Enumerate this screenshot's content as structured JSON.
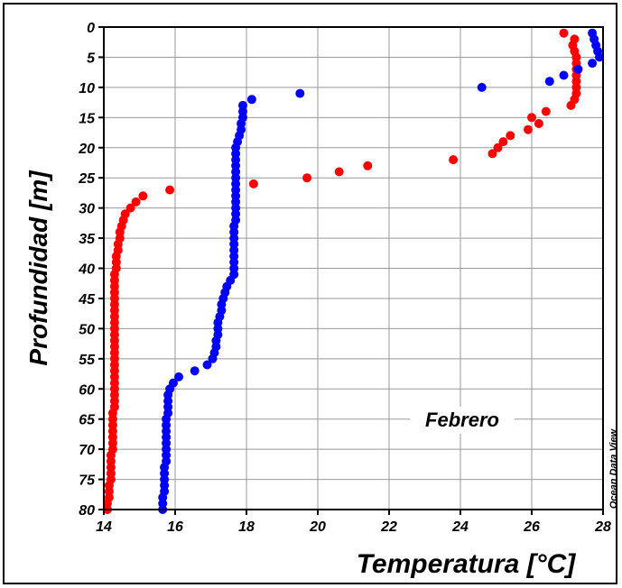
{
  "chart_data": {
    "type": "scatter",
    "xlabel": "Temperatura [°C]",
    "ylabel": "Profundidad [m]",
    "annotation": "Febrero",
    "watermark": "Ocean Data View",
    "xlim": [
      14,
      28
    ],
    "ylim": [
      0,
      80
    ],
    "y_inverted": true,
    "x_ticks": [
      14,
      16,
      18,
      20,
      22,
      24,
      26,
      28
    ],
    "y_ticks": [
      0,
      5,
      10,
      15,
      20,
      25,
      30,
      35,
      40,
      45,
      50,
      55,
      60,
      65,
      70,
      75,
      80
    ],
    "grid": true,
    "series": [
      {
        "color": "#ff0000",
        "points": [
          [
            26.9,
            1
          ],
          [
            27.2,
            2
          ],
          [
            27.15,
            3
          ],
          [
            27.2,
            4
          ],
          [
            27.25,
            5
          ],
          [
            27.25,
            6
          ],
          [
            27.25,
            7
          ],
          [
            27.25,
            8
          ],
          [
            27.25,
            9
          ],
          [
            27.25,
            10
          ],
          [
            27.25,
            11
          ],
          [
            27.2,
            12
          ],
          [
            27.1,
            13
          ],
          [
            26.4,
            14
          ],
          [
            26.0,
            15
          ],
          [
            26.2,
            16
          ],
          [
            25.9,
            17
          ],
          [
            25.4,
            18
          ],
          [
            25.2,
            19
          ],
          [
            25.05,
            20
          ],
          [
            24.9,
            21
          ],
          [
            23.8,
            22
          ],
          [
            21.4,
            23
          ],
          [
            20.6,
            24
          ],
          [
            19.7,
            25
          ],
          [
            18.2,
            26
          ],
          [
            15.85,
            27
          ],
          [
            15.1,
            28
          ],
          [
            14.9,
            29
          ],
          [
            14.75,
            30
          ],
          [
            14.6,
            31
          ],
          [
            14.55,
            32
          ],
          [
            14.5,
            33
          ],
          [
            14.45,
            34
          ],
          [
            14.45,
            35
          ],
          [
            14.4,
            36
          ],
          [
            14.4,
            37
          ],
          [
            14.35,
            38
          ],
          [
            14.35,
            39
          ],
          [
            14.35,
            40
          ],
          [
            14.3,
            41
          ],
          [
            14.3,
            42
          ],
          [
            14.3,
            43
          ],
          [
            14.3,
            44
          ],
          [
            14.3,
            45
          ],
          [
            14.3,
            46
          ],
          [
            14.3,
            47
          ],
          [
            14.3,
            48
          ],
          [
            14.3,
            49
          ],
          [
            14.3,
            50
          ],
          [
            14.3,
            51
          ],
          [
            14.3,
            52
          ],
          [
            14.3,
            53
          ],
          [
            14.3,
            54
          ],
          [
            14.3,
            55
          ],
          [
            14.3,
            56
          ],
          [
            14.3,
            57
          ],
          [
            14.3,
            58
          ],
          [
            14.3,
            59
          ],
          [
            14.3,
            60
          ],
          [
            14.3,
            61
          ],
          [
            14.3,
            62
          ],
          [
            14.3,
            63
          ],
          [
            14.25,
            64
          ],
          [
            14.25,
            65
          ],
          [
            14.25,
            66
          ],
          [
            14.25,
            67
          ],
          [
            14.25,
            68
          ],
          [
            14.25,
            69
          ],
          [
            14.25,
            70
          ],
          [
            14.2,
            71
          ],
          [
            14.2,
            72
          ],
          [
            14.2,
            73
          ],
          [
            14.2,
            74
          ],
          [
            14.2,
            75
          ],
          [
            14.15,
            76
          ],
          [
            14.15,
            77
          ],
          [
            14.15,
            78
          ],
          [
            14.1,
            79
          ],
          [
            14.1,
            80
          ]
        ]
      },
      {
        "color": "#0000ff",
        "points": [
          [
            27.7,
            1
          ],
          [
            27.75,
            2
          ],
          [
            27.8,
            3
          ],
          [
            27.85,
            4
          ],
          [
            27.9,
            5
          ],
          [
            27.7,
            6
          ],
          [
            27.3,
            7
          ],
          [
            26.9,
            8
          ],
          [
            26.5,
            9
          ],
          [
            24.6,
            10
          ],
          [
            19.5,
            11
          ],
          [
            18.15,
            12
          ],
          [
            17.9,
            13
          ],
          [
            17.9,
            14
          ],
          [
            17.9,
            15
          ],
          [
            17.85,
            16
          ],
          [
            17.85,
            17
          ],
          [
            17.8,
            18
          ],
          [
            17.75,
            19
          ],
          [
            17.7,
            20
          ],
          [
            17.7,
            21
          ],
          [
            17.7,
            22
          ],
          [
            17.7,
            23
          ],
          [
            17.7,
            24
          ],
          [
            17.7,
            25
          ],
          [
            17.7,
            26
          ],
          [
            17.7,
            27
          ],
          [
            17.7,
            28
          ],
          [
            17.7,
            29
          ],
          [
            17.7,
            30
          ],
          [
            17.7,
            31
          ],
          [
            17.7,
            32
          ],
          [
            17.65,
            33
          ],
          [
            17.65,
            34
          ],
          [
            17.65,
            35
          ],
          [
            17.65,
            36
          ],
          [
            17.65,
            37
          ],
          [
            17.65,
            38
          ],
          [
            17.65,
            39
          ],
          [
            17.65,
            40
          ],
          [
            17.65,
            41
          ],
          [
            17.55,
            42
          ],
          [
            17.45,
            43
          ],
          [
            17.4,
            44
          ],
          [
            17.35,
            45
          ],
          [
            17.3,
            46
          ],
          [
            17.3,
            47
          ],
          [
            17.25,
            48
          ],
          [
            17.2,
            49
          ],
          [
            17.2,
            50
          ],
          [
            17.2,
            51
          ],
          [
            17.15,
            52
          ],
          [
            17.15,
            53
          ],
          [
            17.1,
            54
          ],
          [
            17.05,
            55
          ],
          [
            16.9,
            56
          ],
          [
            16.55,
            57
          ],
          [
            16.1,
            58
          ],
          [
            15.95,
            59
          ],
          [
            15.85,
            60
          ],
          [
            15.8,
            61
          ],
          [
            15.8,
            62
          ],
          [
            15.8,
            63
          ],
          [
            15.8,
            64
          ],
          [
            15.75,
            65
          ],
          [
            15.75,
            66
          ],
          [
            15.75,
            67
          ],
          [
            15.75,
            68
          ],
          [
            15.75,
            69
          ],
          [
            15.75,
            70
          ],
          [
            15.75,
            71
          ],
          [
            15.75,
            72
          ],
          [
            15.7,
            73
          ],
          [
            15.7,
            74
          ],
          [
            15.7,
            75
          ],
          [
            15.7,
            76
          ],
          [
            15.7,
            77
          ],
          [
            15.65,
            78
          ],
          [
            15.65,
            79
          ],
          [
            15.65,
            80
          ]
        ]
      }
    ]
  }
}
